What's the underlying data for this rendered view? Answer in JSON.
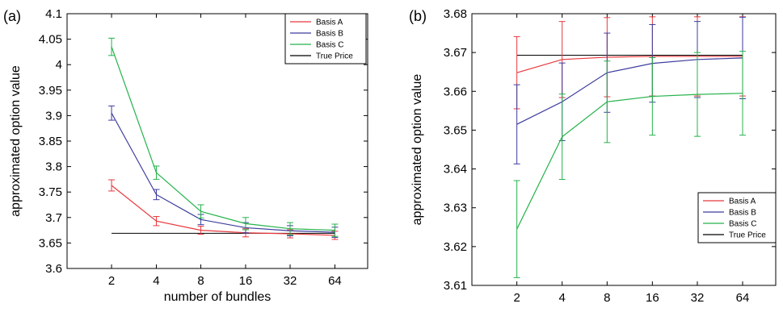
{
  "chart_data": [
    {
      "type": "line",
      "panel_label": "(a)",
      "xlabel": "number of bundles",
      "ylabel": "approximated option value",
      "categories": [
        "2",
        "4",
        "8",
        "16",
        "32",
        "64"
      ],
      "ylim": [
        3.6,
        4.1
      ],
      "yticks": [
        "3.6",
        "3.65",
        "3.7",
        "3.75",
        "3.8",
        "3.85",
        "3.9",
        "3.95",
        "4",
        "4.05",
        "4.1"
      ],
      "grid": false,
      "legend_position": "top-right",
      "true_price": 3.669,
      "true_price_label": "True Price",
      "series": [
        {
          "name": "Basis A",
          "color": "#e8383d",
          "values": [
            3.763,
            3.693,
            3.675,
            3.67,
            3.668,
            3.665
          ],
          "err": [
            0.011,
            0.009,
            0.008,
            0.008,
            0.008,
            0.008
          ]
        },
        {
          "name": "Basis B",
          "color": "#3c3c9e",
          "values": [
            3.905,
            3.745,
            3.696,
            3.68,
            3.674,
            3.671
          ],
          "err": [
            0.014,
            0.01,
            0.01,
            0.01,
            0.01,
            0.01
          ]
        },
        {
          "name": "Basis C",
          "color": "#24b24a",
          "values": [
            4.035,
            3.788,
            3.712,
            3.688,
            3.678,
            3.675
          ],
          "err": [
            0.017,
            0.013,
            0.013,
            0.012,
            0.012,
            0.012
          ]
        }
      ]
    },
    {
      "type": "line",
      "panel_label": "(b)",
      "xlabel": "number of bundles",
      "ylabel": "approximated option value",
      "categories": [
        "2",
        "4",
        "8",
        "16",
        "32",
        "64"
      ],
      "ylim": [
        3.61,
        3.68
      ],
      "yticks": [
        "3.61",
        "3.62",
        "3.63",
        "3.64",
        "3.65",
        "3.66",
        "3.67",
        "3.68"
      ],
      "grid": false,
      "legend_position": "bottom-right",
      "true_price": 3.6693,
      "true_price_label": "True Price",
      "series": [
        {
          "name": "Basis A",
          "color": "#e8383d",
          "values": [
            3.6648,
            3.6682,
            3.6688,
            3.669,
            3.669,
            3.669
          ],
          "err": [
            0.0093,
            0.0098,
            0.0102,
            0.0102,
            0.0102,
            0.0102
          ]
        },
        {
          "name": "Basis B",
          "color": "#3c3c9e",
          "values": [
            3.6515,
            3.6573,
            3.6648,
            3.6672,
            3.6682,
            3.6686
          ],
          "err": [
            0.0102,
            0.01,
            0.0102,
            0.01,
            0.0098,
            0.0105
          ]
        },
        {
          "name": "Basis C",
          "color": "#24b24a",
          "values": [
            3.6245,
            3.6483,
            3.6573,
            3.6587,
            3.6592,
            3.6595
          ],
          "err": [
            0.0125,
            0.011,
            0.0105,
            0.01,
            0.0108,
            0.0108
          ]
        }
      ]
    }
  ]
}
